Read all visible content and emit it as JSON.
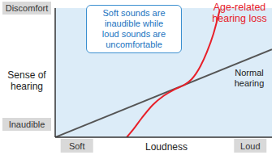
{
  "chart_data": {
    "type": "line",
    "x_label": "Loudness",
    "y_label": "Sense of hearing",
    "annotation": "Soft sounds are inaudible while loud sounds are uncomfortable",
    "xlim": [
      0,
      10
    ],
    "xticks": [
      {
        "value": 1,
        "label": "Soft"
      },
      {
        "value": 9,
        "label": "Loud"
      }
    ],
    "ylim": [
      0,
      10
    ],
    "yticks": [
      {
        "value": 1,
        "label": "Inaudible"
      },
      {
        "value": 10,
        "label": "Discomfort"
      }
    ],
    "series": [
      {
        "name": "Normal hearing",
        "color": "#555555",
        "x": [
          0,
          10
        ],
        "values": [
          0,
          6.8
        ]
      },
      {
        "name": "Age-related hearing loss",
        "color": "#e8202a",
        "x": [
          3.3,
          3.6,
          4.0,
          4.5,
          5.0,
          5.5,
          5.9,
          6.3,
          6.7,
          7.0,
          7.3,
          7.6
        ],
        "values": [
          0,
          0.6,
          1.5,
          2.5,
          3.2,
          3.7,
          4.0,
          4.5,
          5.5,
          6.6,
          8.0,
          9.9
        ]
      }
    ]
  }
}
